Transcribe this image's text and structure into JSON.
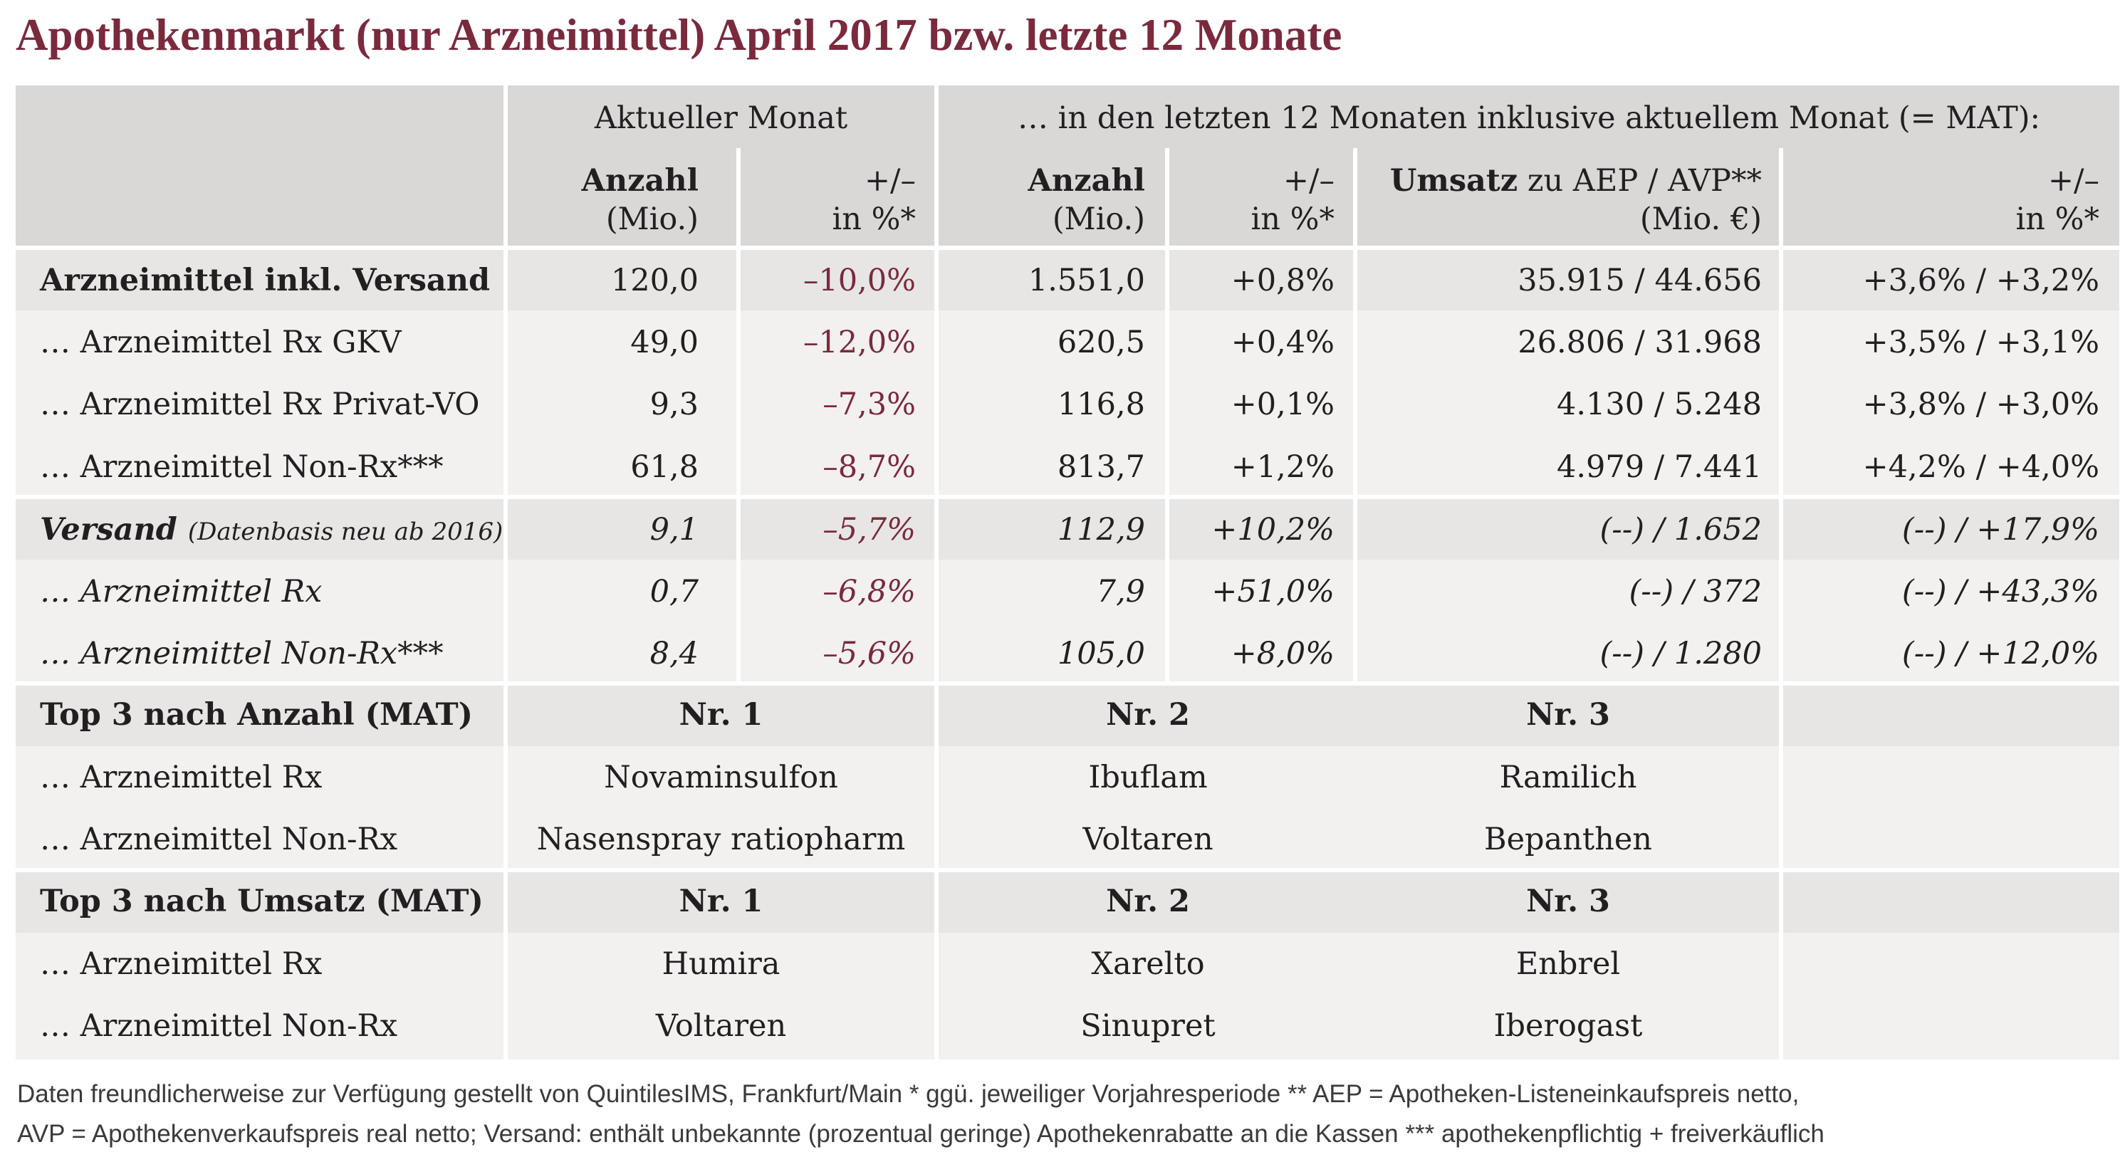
{
  "title": "Apothekenmarkt (nur Arzneimittel) April 2017 bzw. letzte 12 Monate",
  "header": {
    "group_current": "Aktueller Monat",
    "group_mat": "… in den letzten 12 Monaten inklusive aktuellem Monat (= MAT):",
    "col_anzahl_a": "Anzahl",
    "col_anzahl_b": "(Mio.)",
    "col_pm_a": "+/–",
    "col_pm_b": "in %*",
    "col_anzahl2_a": "Anzahl",
    "col_anzahl2_b": "(Mio.)",
    "col_pm2_a": "+/–",
    "col_pm2_b": "in %*",
    "col_umsatz_bold": "Umsatz",
    "col_umsatz_rest": " zu AEP / AVP**",
    "col_umsatz_b": "(Mio. €)",
    "col_pm3_a": "+/–",
    "col_pm3_b": "in %*"
  },
  "rows": [
    {
      "label": "Arzneimittel inkl. Versand",
      "anzahl": "120,0",
      "pm": "–10,0%",
      "anzahl12": "1.551,0",
      "pm12": "+0,8%",
      "umsatz": "35.915 / 44.656",
      "pm_umsatz": "+3,6% / +3,2%"
    },
    {
      "label": "… Arzneimittel Rx GKV",
      "anzahl": "49,0",
      "pm": "–12,0%",
      "anzahl12": "620,5",
      "pm12": "+0,4%",
      "umsatz": "26.806 / 31.968",
      "pm_umsatz": "+3,5% / +3,1%"
    },
    {
      "label": "… Arzneimittel Rx Privat-VO",
      "anzahl": "9,3",
      "pm": "–7,3%",
      "anzahl12": "116,8",
      "pm12": "+0,1%",
      "umsatz": "4.130 / 5.248",
      "pm_umsatz": "+3,8% / +3,0%"
    },
    {
      "label": "… Arzneimittel Non-Rx***",
      "anzahl": "61,8",
      "pm": "–8,7%",
      "anzahl12": "813,7",
      "pm12": "+1,2%",
      "umsatz": "4.979 / 7.441",
      "pm_umsatz": "+4,2% / +4,0%"
    },
    {
      "label": "Versand",
      "sublabel": "(Datenbasis neu ab 2016)",
      "anzahl": "9,1",
      "pm": "–5,7%",
      "anzahl12": "112,9",
      "pm12": "+10,2%",
      "umsatz": "(--) / 1.652",
      "pm_umsatz": "(--) / +17,9%"
    },
    {
      "label": "… Arzneimittel Rx",
      "anzahl": "0,7",
      "pm": "–6,8%",
      "anzahl12": "7,9",
      "pm12": "+51,0%",
      "umsatz": "(--) / 372",
      "pm_umsatz": "(--) / +43,3%"
    },
    {
      "label": "… Arzneimittel Non-Rx***",
      "anzahl": "8,4",
      "pm": "–5,6%",
      "anzahl12": "105,0",
      "pm12": "+8,0%",
      "umsatz": "(--) / 1.280",
      "pm_umsatz": "(--) / +12,0%"
    }
  ],
  "top_anzahl": {
    "title": "Top 3 nach Anzahl (MAT)",
    "nr1": "Nr. 1",
    "nr2": "Nr. 2",
    "nr3": "Nr. 3",
    "rx_label": "… Arzneimittel Rx",
    "rx": [
      "Novaminsulfon",
      "Ibuflam",
      "Ramilich"
    ],
    "nonrx_label": "… Arzneimittel Non-Rx",
    "nonrx": [
      "Nasenspray ratiopharm",
      "Voltaren",
      "Bepanthen"
    ]
  },
  "top_umsatz": {
    "title": "Top 3 nach Umsatz (MAT)",
    "nr1": "Nr. 1",
    "nr2": "Nr. 2",
    "nr3": "Nr. 3",
    "rx_label": "… Arzneimittel Rx",
    "rx": [
      "Humira",
      "Xarelto",
      "Enbrel"
    ],
    "nonrx_label": "… Arzneimittel Non-Rx",
    "nonrx": [
      "Voltaren",
      "Sinupret",
      "Iberogast"
    ]
  },
  "footnote": {
    "line1": "Daten freundlicherweise zur Verfügung gestellt von QuintilesIMS, Frankfurt/Main   * ggü. jeweiliger Vorjahresperiode   ** AEP = Apotheken-Listeneinkaufspreis netto,",
    "line2": "AVP = Apothekenverkaufspreis real netto; Versand: enthält unbekannte (prozentual geringe) Apothekenrabatte an die Kassen   *** apothekenpflichtig + freiverkäuflich"
  },
  "colors": {
    "title": "#7a2a3c",
    "negative": "#7a2a3c",
    "band_dark": "#d9d8d7",
    "band_mid": "#e7e6e5",
    "band_light": "#f2f1f0"
  }
}
